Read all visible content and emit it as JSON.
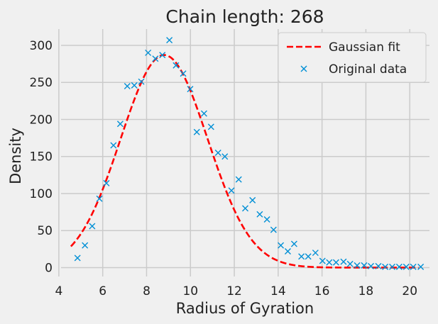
{
  "chart_data": {
    "type": "line",
    "title": "Chain length: 268",
    "xlabel": "Radius of Gyration",
    "ylabel": "Density",
    "xlim": [
      4.1,
      20.9
    ],
    "ylim": [
      -12,
      322
    ],
    "xticks": [
      4,
      6,
      8,
      10,
      12,
      14,
      16,
      18,
      20
    ],
    "yticks": [
      0,
      50,
      100,
      150,
      200,
      250,
      300
    ],
    "grid": true,
    "legend_position": "top-right",
    "colors": {
      "background": "#f0f0f0",
      "grid": "#cbcbcb",
      "fit": "#ff0000",
      "data": "#008fd5",
      "text": "#222222"
    },
    "series": [
      {
        "name": "Gaussian fit",
        "style": "dashed-line",
        "fit_params": {
          "amplitude": 287,
          "mean": 8.8,
          "sigma": 1.98
        },
        "x_range": [
          4.55,
          20.4
        ]
      },
      {
        "name": "Original data",
        "style": "x-marker",
        "points": [
          [
            4.85,
            13
          ],
          [
            5.19,
            30
          ],
          [
            5.52,
            56
          ],
          [
            5.85,
            93
          ],
          [
            6.17,
            114
          ],
          [
            6.49,
            165
          ],
          [
            6.8,
            194
          ],
          [
            7.12,
            245
          ],
          [
            7.44,
            246
          ],
          [
            7.76,
            251
          ],
          [
            8.07,
            290
          ],
          [
            8.4,
            282
          ],
          [
            8.72,
            287
          ],
          [
            9.04,
            307
          ],
          [
            9.34,
            273
          ],
          [
            9.67,
            262
          ],
          [
            9.99,
            241
          ],
          [
            10.29,
            183
          ],
          [
            10.62,
            208
          ],
          [
            10.94,
            190
          ],
          [
            11.26,
            155
          ],
          [
            11.57,
            150
          ],
          [
            11.87,
            104
          ],
          [
            12.2,
            119
          ],
          [
            12.5,
            80
          ],
          [
            12.83,
            91
          ],
          [
            13.16,
            72
          ],
          [
            13.49,
            65
          ],
          [
            13.79,
            51
          ],
          [
            14.12,
            30
          ],
          [
            14.44,
            22
          ],
          [
            14.73,
            32
          ],
          [
            15.06,
            15
          ],
          [
            15.37,
            15
          ],
          [
            15.7,
            20
          ],
          [
            16.02,
            9
          ],
          [
            16.33,
            7
          ],
          [
            16.64,
            7
          ],
          [
            16.98,
            8
          ],
          [
            17.28,
            5
          ],
          [
            17.6,
            3
          ],
          [
            17.92,
            3
          ],
          [
            18.23,
            2
          ],
          [
            18.57,
            2
          ],
          [
            18.88,
            1
          ],
          [
            19.2,
            1
          ],
          [
            19.52,
            1
          ],
          [
            19.84,
            1
          ],
          [
            20.16,
            1
          ],
          [
            20.5,
            1
          ]
        ]
      }
    ]
  }
}
